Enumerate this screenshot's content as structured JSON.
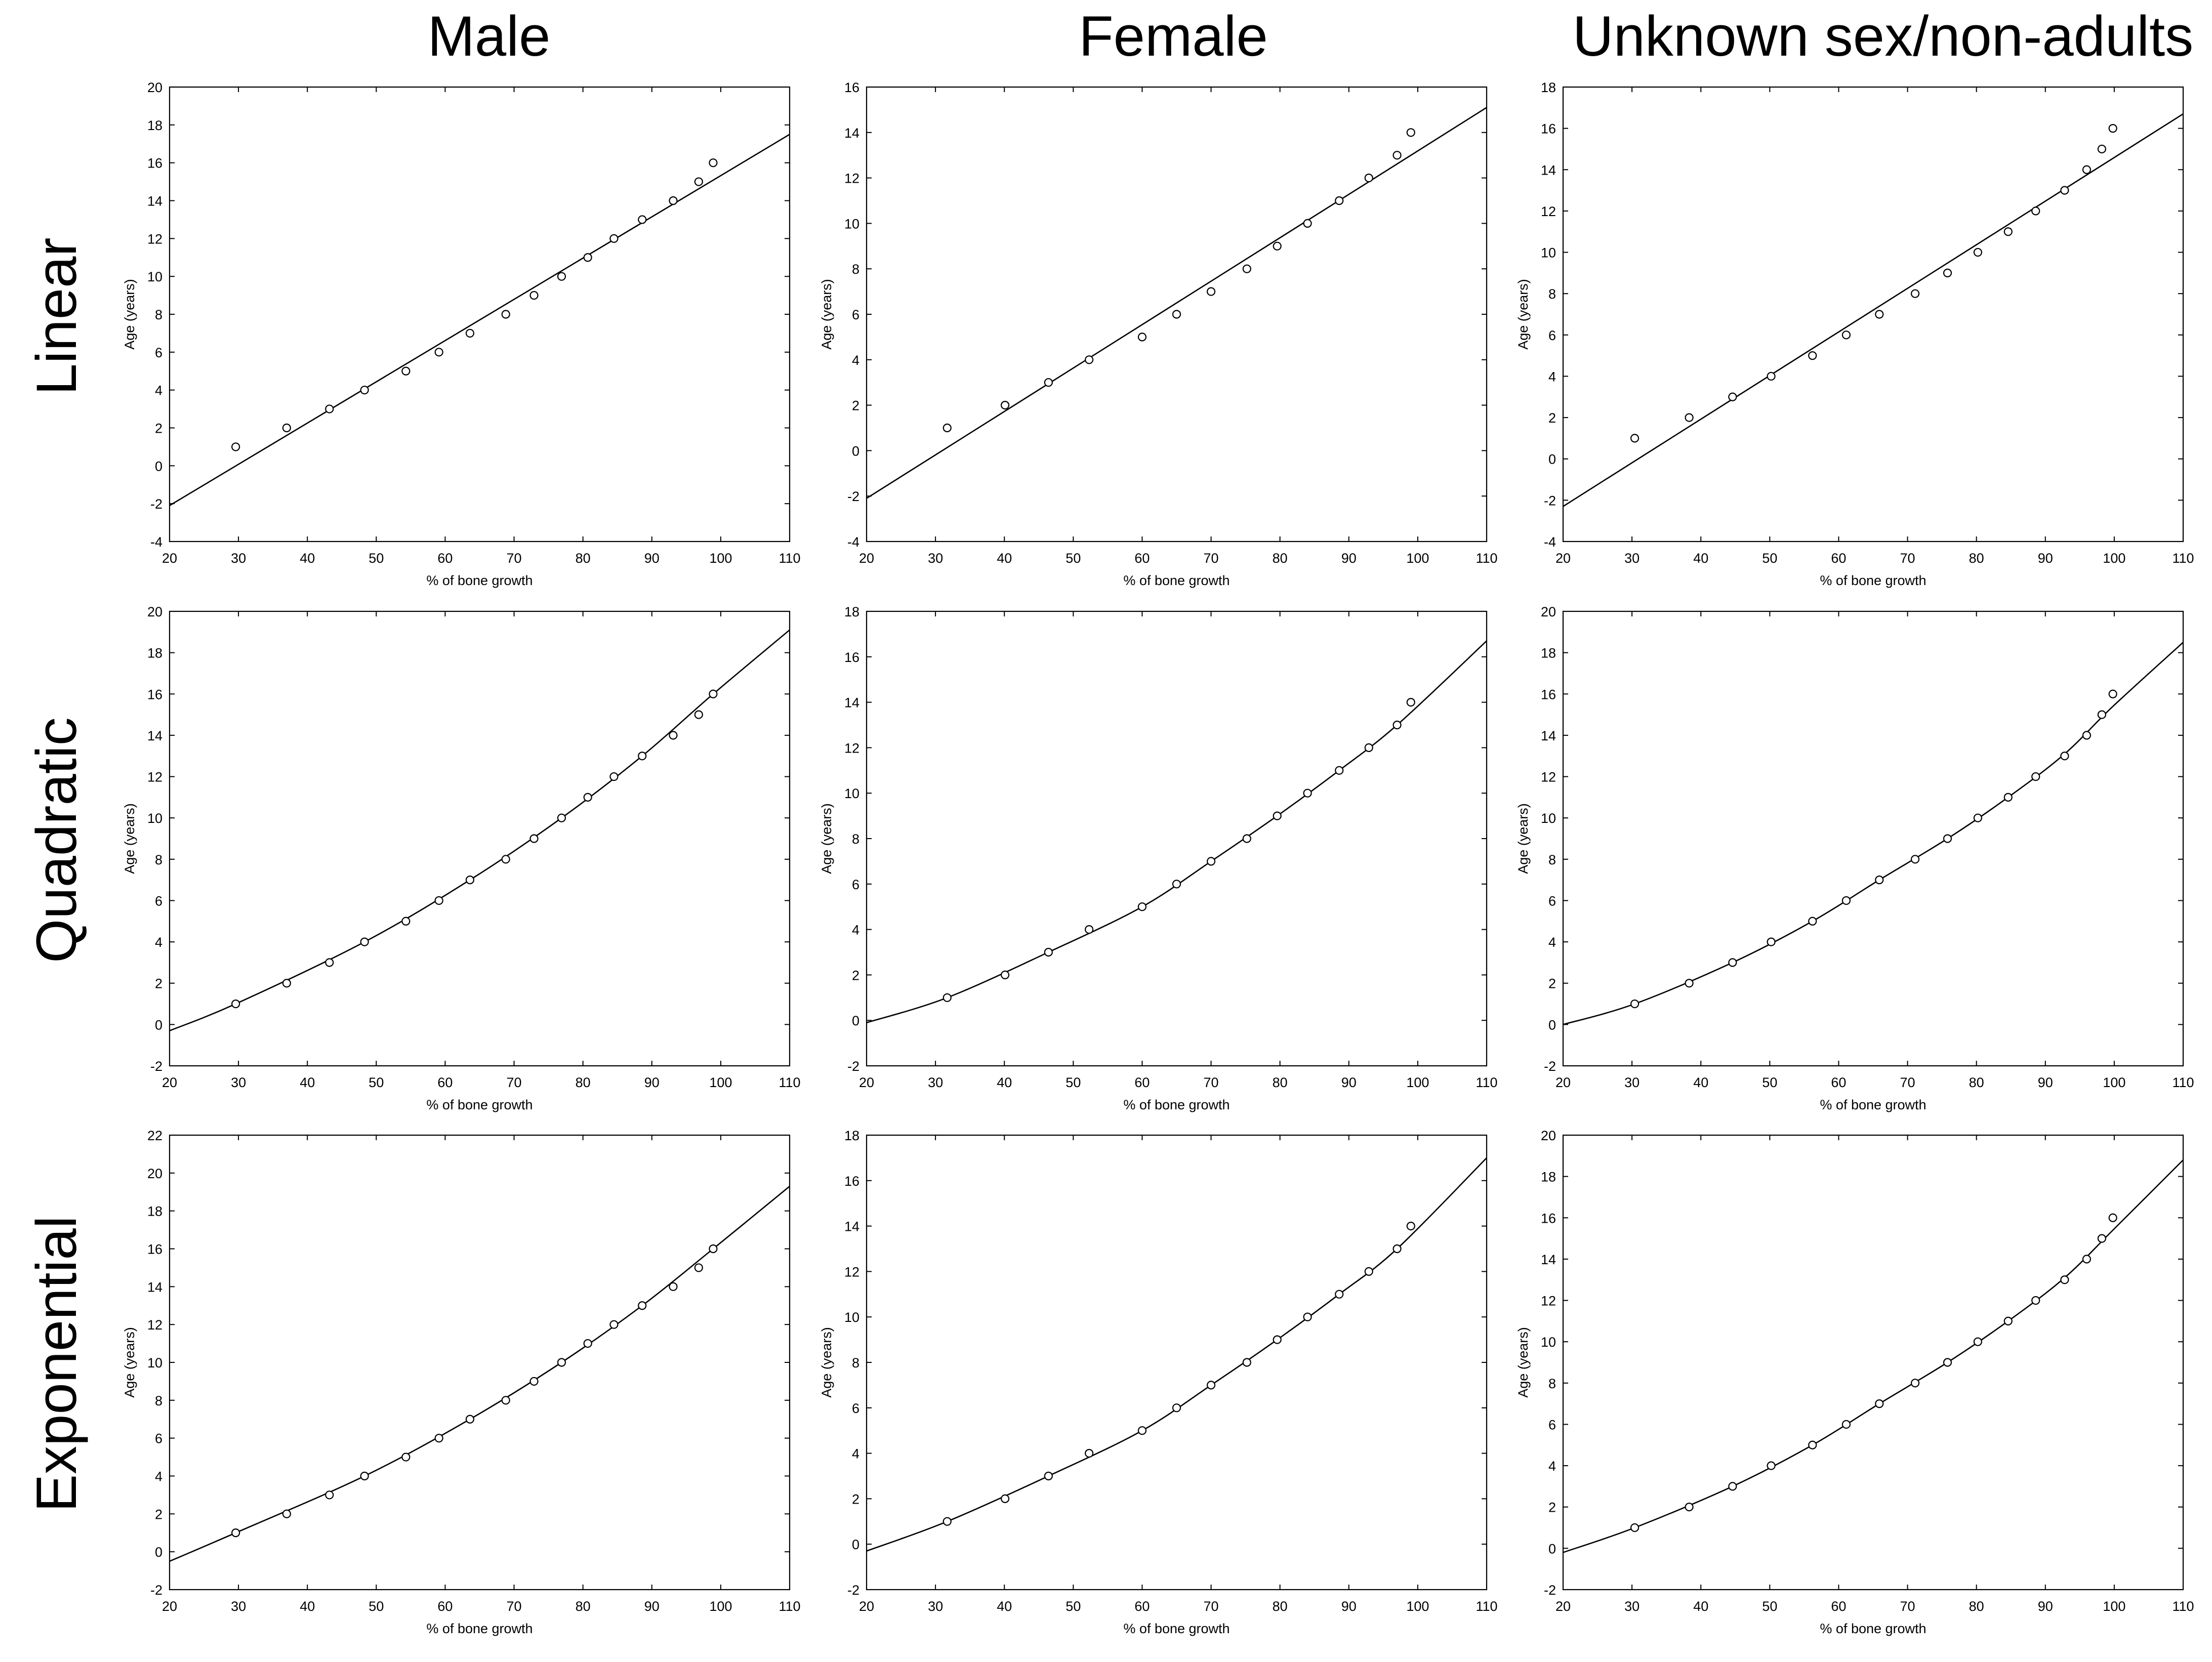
{
  "columns": [
    "Male",
    "Female",
    "Unknown sex/non-adults"
  ],
  "rows": [
    "Linear",
    "Quadratic",
    "Exponential"
  ],
  "chart_data": [
    {
      "type": "scatter",
      "row": "Linear",
      "column": "Male",
      "xlabel": "% of bone growth",
      "ylabel": "Age (years)",
      "xlim": [
        20,
        110
      ],
      "ylim": [
        -4,
        20
      ],
      "xticks": [
        20,
        30,
        40,
        50,
        60,
        70,
        80,
        90,
        100,
        110
      ],
      "yticks": [
        -4,
        -2,
        0,
        2,
        4,
        6,
        8,
        10,
        12,
        14,
        16,
        18,
        20
      ],
      "points": [
        [
          29.6,
          1
        ],
        [
          37,
          2
        ],
        [
          43.2,
          3
        ],
        [
          48.3,
          4
        ],
        [
          54.3,
          5
        ],
        [
          59.1,
          6
        ],
        [
          63.6,
          7
        ],
        [
          68.8,
          8
        ],
        [
          72.9,
          9
        ],
        [
          76.9,
          10
        ],
        [
          80.7,
          11
        ],
        [
          84.5,
          12
        ],
        [
          88.6,
          13
        ],
        [
          93.1,
          14
        ],
        [
          96.8,
          15
        ],
        [
          98.9,
          16
        ]
      ],
      "fit": {
        "model": "linear",
        "line": [
          [
            20,
            -2.1
          ],
          [
            110,
            17.5
          ]
        ]
      }
    },
    {
      "type": "scatter",
      "row": "Linear",
      "column": "Female",
      "xlabel": "% of bone growth",
      "ylabel": "Age (years)",
      "xlim": [
        20,
        110
      ],
      "ylim": [
        -4,
        16
      ],
      "xticks": [
        20,
        30,
        40,
        50,
        60,
        70,
        80,
        90,
        100,
        110
      ],
      "yticks": [
        -4,
        -2,
        0,
        2,
        4,
        6,
        8,
        10,
        12,
        14,
        16
      ],
      "points": [
        [
          31.7,
          1
        ],
        [
          40.1,
          2
        ],
        [
          46.4,
          3
        ],
        [
          52.3,
          4
        ],
        [
          60,
          5
        ],
        [
          65,
          6
        ],
        [
          70,
          7
        ],
        [
          75.2,
          8
        ],
        [
          79.6,
          9
        ],
        [
          84,
          10
        ],
        [
          88.6,
          11
        ],
        [
          92.9,
          12
        ],
        [
          97,
          13
        ],
        [
          99,
          14
        ]
      ],
      "fit": {
        "model": "linear",
        "line": [
          [
            20,
            -2.1
          ],
          [
            110,
            15.1
          ]
        ]
      }
    },
    {
      "type": "scatter",
      "row": "Linear",
      "column": "Unknown sex/non-adults",
      "xlabel": "% of bone growth",
      "ylabel": "Age (years)",
      "xlim": [
        20,
        110
      ],
      "ylim": [
        -4,
        18
      ],
      "xticks": [
        20,
        30,
        40,
        50,
        60,
        70,
        80,
        90,
        100,
        110
      ],
      "yticks": [
        -4,
        -2,
        0,
        2,
        4,
        6,
        8,
        10,
        12,
        14,
        16,
        18
      ],
      "points": [
        [
          30.4,
          1
        ],
        [
          38.3,
          2
        ],
        [
          44.6,
          3
        ],
        [
          50.2,
          4
        ],
        [
          56.2,
          5
        ],
        [
          61.1,
          6
        ],
        [
          65.9,
          7
        ],
        [
          71.1,
          8
        ],
        [
          75.8,
          9
        ],
        [
          80.2,
          10
        ],
        [
          84.6,
          11
        ],
        [
          88.6,
          12
        ],
        [
          92.8,
          13
        ],
        [
          96,
          14
        ],
        [
          98.2,
          15
        ],
        [
          99.8,
          16
        ]
      ],
      "fit": {
        "model": "linear",
        "line": [
          [
            20,
            -2.3
          ],
          [
            110,
            16.7
          ]
        ]
      }
    },
    {
      "type": "scatter",
      "row": "Quadratic",
      "column": "Male",
      "xlabel": "% of bone growth",
      "ylabel": "Age (years)",
      "xlim": [
        20,
        110
      ],
      "ylim": [
        -2,
        20
      ],
      "xticks": [
        20,
        30,
        40,
        50,
        60,
        70,
        80,
        90,
        100,
        110
      ],
      "yticks": [
        -2,
        0,
        2,
        4,
        6,
        8,
        10,
        12,
        14,
        16,
        18,
        20
      ],
      "points": [
        [
          29.6,
          1
        ],
        [
          37,
          2
        ],
        [
          43.2,
          3
        ],
        [
          48.3,
          4
        ],
        [
          54.3,
          5
        ],
        [
          59.1,
          6
        ],
        [
          63.6,
          7
        ],
        [
          68.8,
          8
        ],
        [
          72.9,
          9
        ],
        [
          76.9,
          10
        ],
        [
          80.7,
          11
        ],
        [
          84.5,
          12
        ],
        [
          88.6,
          13
        ],
        [
          93.1,
          14
        ],
        [
          96.8,
          15
        ],
        [
          98.9,
          16
        ]
      ],
      "fit": {
        "model": "quadratic",
        "curve": [
          [
            20,
            -0.3
          ],
          [
            29.6,
            1
          ],
          [
            48.3,
            4
          ],
          [
            63.6,
            7
          ],
          [
            76.9,
            10
          ],
          [
            88.6,
            13
          ],
          [
            98.9,
            16
          ],
          [
            110,
            19.1
          ]
        ]
      }
    },
    {
      "type": "scatter",
      "row": "Quadratic",
      "column": "Female",
      "xlabel": "% of bone growth",
      "ylabel": "Age (years)",
      "xlim": [
        20,
        110
      ],
      "ylim": [
        -2,
        18
      ],
      "xticks": [
        20,
        30,
        40,
        50,
        60,
        70,
        80,
        90,
        100,
        110
      ],
      "yticks": [
        -2,
        0,
        2,
        4,
        6,
        8,
        10,
        12,
        14,
        16,
        18
      ],
      "points": [
        [
          31.7,
          1
        ],
        [
          40.1,
          2
        ],
        [
          46.4,
          3
        ],
        [
          52.3,
          4
        ],
        [
          60,
          5
        ],
        [
          65,
          6
        ],
        [
          70,
          7
        ],
        [
          75.2,
          8
        ],
        [
          79.6,
          9
        ],
        [
          84,
          10
        ],
        [
          88.6,
          11
        ],
        [
          92.9,
          12
        ],
        [
          97,
          13
        ],
        [
          99,
          14
        ]
      ],
      "fit": {
        "model": "quadratic",
        "curve": [
          [
            20,
            -0.1
          ],
          [
            31.7,
            1
          ],
          [
            46.4,
            3
          ],
          [
            60,
            5
          ],
          [
            70,
            7
          ],
          [
            79.6,
            9
          ],
          [
            88.6,
            11
          ],
          [
            97,
            13
          ],
          [
            110,
            16.7
          ]
        ]
      }
    },
    {
      "type": "scatter",
      "row": "Quadratic",
      "column": "Unknown sex/non-adults",
      "xlabel": "% of bone growth",
      "ylabel": "Age (years)",
      "xlim": [
        20,
        110
      ],
      "ylim": [
        -2,
        20
      ],
      "xticks": [
        20,
        30,
        40,
        50,
        60,
        70,
        80,
        90,
        100,
        110
      ],
      "yticks": [
        -2,
        0,
        2,
        4,
        6,
        8,
        10,
        12,
        14,
        16,
        18,
        20
      ],
      "points": [
        [
          30.4,
          1
        ],
        [
          38.3,
          2
        ],
        [
          44.6,
          3
        ],
        [
          50.2,
          4
        ],
        [
          56.2,
          5
        ],
        [
          61.1,
          6
        ],
        [
          65.9,
          7
        ],
        [
          71.1,
          8
        ],
        [
          75.8,
          9
        ],
        [
          80.2,
          10
        ],
        [
          84.6,
          11
        ],
        [
          88.6,
          12
        ],
        [
          92.8,
          13
        ],
        [
          96,
          14
        ],
        [
          98.2,
          15
        ],
        [
          99.8,
          16
        ]
      ],
      "fit": {
        "model": "quadratic",
        "curve": [
          [
            20,
            0
          ],
          [
            30.4,
            1
          ],
          [
            44.6,
            3
          ],
          [
            56.2,
            5
          ],
          [
            65.9,
            7
          ],
          [
            75.8,
            9
          ],
          [
            84.6,
            11
          ],
          [
            92.8,
            13.1
          ],
          [
            99.8,
            15.4
          ],
          [
            110,
            18.5
          ]
        ]
      }
    },
    {
      "type": "scatter",
      "row": "Exponential",
      "column": "Male",
      "xlabel": "% of bone growth",
      "ylabel": "Age (years)",
      "xlim": [
        20,
        110
      ],
      "ylim": [
        -2,
        22
      ],
      "xticks": [
        20,
        30,
        40,
        50,
        60,
        70,
        80,
        90,
        100,
        110
      ],
      "yticks": [
        -2,
        0,
        2,
        4,
        6,
        8,
        10,
        12,
        14,
        16,
        18,
        20,
        22
      ],
      "points": [
        [
          29.6,
          1
        ],
        [
          37,
          2
        ],
        [
          43.2,
          3
        ],
        [
          48.3,
          4
        ],
        [
          54.3,
          5
        ],
        [
          59.1,
          6
        ],
        [
          63.6,
          7
        ],
        [
          68.8,
          8
        ],
        [
          72.9,
          9
        ],
        [
          76.9,
          10
        ],
        [
          80.7,
          11
        ],
        [
          84.5,
          12
        ],
        [
          88.6,
          13
        ],
        [
          93.1,
          14
        ],
        [
          96.8,
          15
        ],
        [
          98.9,
          16
        ]
      ],
      "fit": {
        "model": "exponential",
        "curve": [
          [
            20,
            -0.5
          ],
          [
            29.6,
            1
          ],
          [
            48.3,
            4
          ],
          [
            63.6,
            7
          ],
          [
            76.9,
            10
          ],
          [
            88.6,
            13
          ],
          [
            98.9,
            16
          ],
          [
            110,
            19.3
          ]
        ]
      }
    },
    {
      "type": "scatter",
      "row": "Exponential",
      "column": "Female",
      "xlabel": "% of bone growth",
      "ylabel": "Age (years)",
      "xlim": [
        20,
        110
      ],
      "ylim": [
        -2,
        18
      ],
      "xticks": [
        20,
        30,
        40,
        50,
        60,
        70,
        80,
        90,
        100,
        110
      ],
      "yticks": [
        -2,
        0,
        2,
        4,
        6,
        8,
        10,
        12,
        14,
        16,
        18
      ],
      "points": [
        [
          31.7,
          1
        ],
        [
          40.1,
          2
        ],
        [
          46.4,
          3
        ],
        [
          52.3,
          4
        ],
        [
          60,
          5
        ],
        [
          65,
          6
        ],
        [
          70,
          7
        ],
        [
          75.2,
          8
        ],
        [
          79.6,
          9
        ],
        [
          84,
          10
        ],
        [
          88.6,
          11
        ],
        [
          92.9,
          12
        ],
        [
          97,
          13
        ],
        [
          99,
          14
        ]
      ],
      "fit": {
        "model": "exponential",
        "curve": [
          [
            20,
            -0.3
          ],
          [
            31.7,
            1
          ],
          [
            46.4,
            3
          ],
          [
            60,
            5
          ],
          [
            70,
            7
          ],
          [
            79.6,
            9
          ],
          [
            88.6,
            11
          ],
          [
            97,
            13
          ],
          [
            110,
            17
          ]
        ]
      }
    },
    {
      "type": "scatter",
      "row": "Exponential",
      "column": "Unknown sex/non-adults",
      "xlabel": "% of bone growth",
      "ylabel": "Age (years)",
      "xlim": [
        20,
        110
      ],
      "ylim": [
        -2,
        20
      ],
      "xticks": [
        20,
        30,
        40,
        50,
        60,
        70,
        80,
        90,
        100,
        110
      ],
      "yticks": [
        -2,
        0,
        2,
        4,
        6,
        8,
        10,
        12,
        14,
        16,
        18,
        20
      ],
      "points": [
        [
          30.4,
          1
        ],
        [
          38.3,
          2
        ],
        [
          44.6,
          3
        ],
        [
          50.2,
          4
        ],
        [
          56.2,
          5
        ],
        [
          61.1,
          6
        ],
        [
          65.9,
          7
        ],
        [
          71.1,
          8
        ],
        [
          75.8,
          9
        ],
        [
          80.2,
          10
        ],
        [
          84.6,
          11
        ],
        [
          88.6,
          12
        ],
        [
          92.8,
          13
        ],
        [
          96,
          14
        ],
        [
          98.2,
          15
        ],
        [
          99.8,
          16
        ]
      ],
      "fit": {
        "model": "exponential",
        "curve": [
          [
            20,
            -0.2
          ],
          [
            30.4,
            1
          ],
          [
            44.6,
            3
          ],
          [
            56.2,
            5
          ],
          [
            65.9,
            7
          ],
          [
            75.8,
            9
          ],
          [
            84.6,
            11
          ],
          [
            92.8,
            13.1
          ],
          [
            99.8,
            15.4
          ],
          [
            110,
            18.8
          ]
        ]
      }
    }
  ]
}
